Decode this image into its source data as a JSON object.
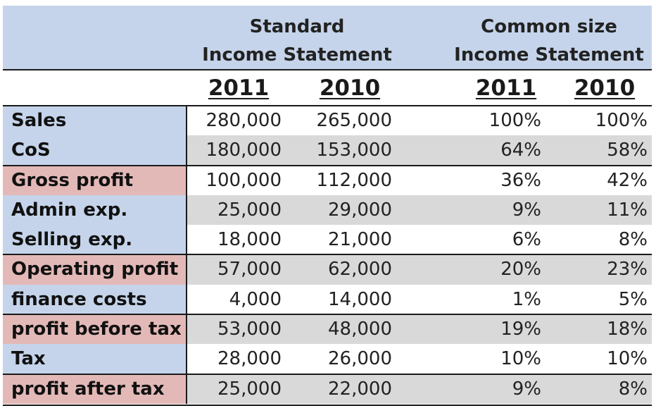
{
  "header": {
    "standard_line1": "Standard",
    "standard_line2": "Income Statement",
    "common_line1": "Common size",
    "common_line2": "Income Statement"
  },
  "years": {
    "standard": [
      "2011",
      "2010"
    ],
    "common": [
      "2011",
      "2010"
    ]
  },
  "rows": [
    {
      "label": "Sales",
      "s2011": "280,000",
      "s2010": "265,000",
      "c2011": "100%",
      "c2010": "100%"
    },
    {
      "label": "CoS",
      "s2011": "180,000",
      "s2010": "153,000",
      "c2011": "64%",
      "c2010": "58%"
    },
    {
      "label": "Gross profit",
      "s2011": "100,000",
      "s2010": "112,000",
      "c2011": "36%",
      "c2010": "42%"
    },
    {
      "label": "Admin exp.",
      "s2011": "25,000",
      "s2010": "29,000",
      "c2011": "9%",
      "c2010": "11%"
    },
    {
      "label": "Selling exp.",
      "s2011": "18,000",
      "s2010": "21,000",
      "c2011": "6%",
      "c2010": "8%"
    },
    {
      "label": "Operating profit",
      "s2011": "57,000",
      "s2010": "62,000",
      "c2011": "20%",
      "c2010": "23%"
    },
    {
      "label": "finance costs",
      "s2011": "4,000",
      "s2010": "14,000",
      "c2011": "1%",
      "c2010": "5%"
    },
    {
      "label": "profit before tax",
      "s2011": "53,000",
      "s2010": "48,000",
      "c2011": "19%",
      "c2010": "18%"
    },
    {
      "label": "Tax",
      "s2011": "28,000",
      "s2010": "26,000",
      "c2011": "10%",
      "c2010": "10%"
    },
    {
      "label": "profit after tax",
      "s2011": "25,000",
      "s2010": "22,000",
      "c2011": "9%",
      "c2010": "8%"
    }
  ],
  "colors": {
    "header_blue": "#c5d4ea",
    "profit_rose": "#e3b9b7",
    "shade_grey": "#d9d9d9"
  }
}
